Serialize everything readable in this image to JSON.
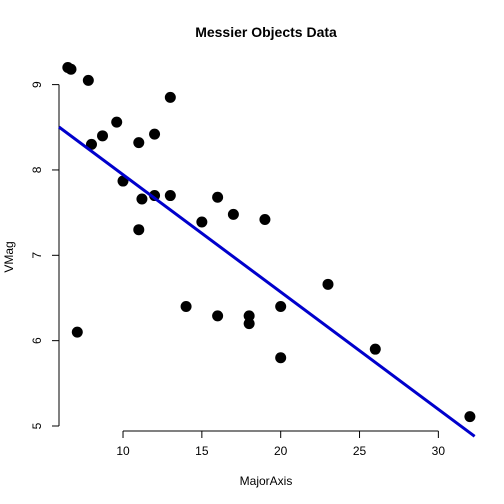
{
  "chart_data": {
    "type": "scatter",
    "title": "Messier Objects Data",
    "xlabel": "MajorAxis",
    "ylabel": "VMag",
    "xlim": [
      5.94,
      32.26
    ],
    "ylim": [
      5.0,
      9.3
    ],
    "xticks": [
      10,
      15,
      20,
      25,
      30
    ],
    "yticks": [
      5,
      6,
      7,
      8,
      9
    ],
    "grid": false,
    "points": [
      {
        "x": 6.5,
        "y": 9.2
      },
      {
        "x": 6.7,
        "y": 9.18
      },
      {
        "x": 7.1,
        "y": 6.1
      },
      {
        "x": 7.8,
        "y": 9.05
      },
      {
        "x": 8.0,
        "y": 8.3
      },
      {
        "x": 8.7,
        "y": 8.4
      },
      {
        "x": 9.6,
        "y": 8.56
      },
      {
        "x": 10.0,
        "y": 7.87
      },
      {
        "x": 11.0,
        "y": 8.32
      },
      {
        "x": 11.0,
        "y": 7.3
      },
      {
        "x": 11.2,
        "y": 7.66
      },
      {
        "x": 12.0,
        "y": 8.42
      },
      {
        "x": 12.0,
        "y": 7.7
      },
      {
        "x": 13.0,
        "y": 8.85
      },
      {
        "x": 13.0,
        "y": 7.7
      },
      {
        "x": 14.0,
        "y": 6.4
      },
      {
        "x": 15.0,
        "y": 7.39
      },
      {
        "x": 16.0,
        "y": 7.68
      },
      {
        "x": 16.0,
        "y": 6.29
      },
      {
        "x": 17.0,
        "y": 7.48
      },
      {
        "x": 18.0,
        "y": 6.29
      },
      {
        "x": 18.0,
        "y": 6.2
      },
      {
        "x": 19.0,
        "y": 7.42
      },
      {
        "x": 20.0,
        "y": 6.4
      },
      {
        "x": 20.0,
        "y": 5.8
      },
      {
        "x": 23.0,
        "y": 6.66
      },
      {
        "x": 26.0,
        "y": 5.9
      },
      {
        "x": 32.0,
        "y": 5.11
      }
    ],
    "fit_line": {
      "intercept": 9.32,
      "slope": -0.1375,
      "color": "#0000cc"
    },
    "point_color": "#000000"
  }
}
